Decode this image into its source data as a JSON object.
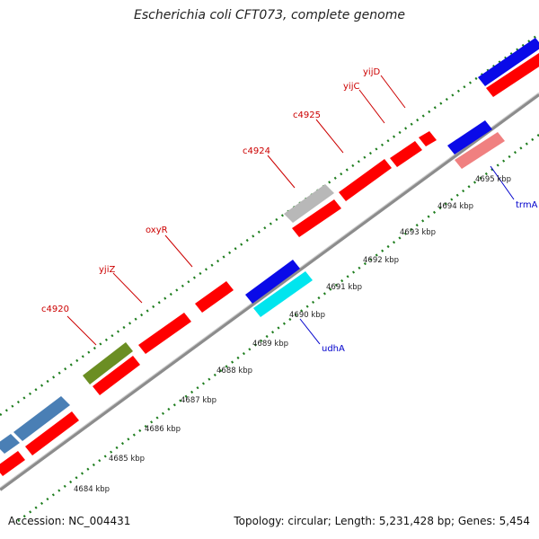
{
  "title": "Escherichia coli CFT073, complete genome",
  "footer": {
    "accession": "Accession: NC_004431",
    "summary": "Topology: circular; Length: 5,231,428 bp; Genes: 5,454"
  },
  "colors": {
    "backbone": "#8c8c8c",
    "tick": "#1e7d1e",
    "forward_cds": "#ff0000",
    "reverse_cds": "#0000ee",
    "gene_label_forward": "#cc0000",
    "gene_label_reverse": "#0000cc"
  },
  "scale_labels": [
    "4684 kbp",
    "4685 kbp",
    "4686 kbp",
    "4687 kbp",
    "4688 kbp",
    "4689 kbp",
    "4690 kbp",
    "4691 kbp",
    "4692 kbp",
    "4693 kbp",
    "4694 kbp",
    "4695 kbp"
  ],
  "gene_labels": [
    {
      "name": "c4920",
      "strand": "forward"
    },
    {
      "name": "yjiZ",
      "strand": "forward"
    },
    {
      "name": "oxyR",
      "strand": "forward"
    },
    {
      "name": "c4924",
      "strand": "forward"
    },
    {
      "name": "c4925",
      "strand": "forward"
    },
    {
      "name": "yijC",
      "strand": "forward"
    },
    {
      "name": "yijD",
      "strand": "forward"
    },
    {
      "name": "udhA",
      "strand": "reverse"
    },
    {
      "name": "trmA",
      "strand": "reverse"
    }
  ]
}
